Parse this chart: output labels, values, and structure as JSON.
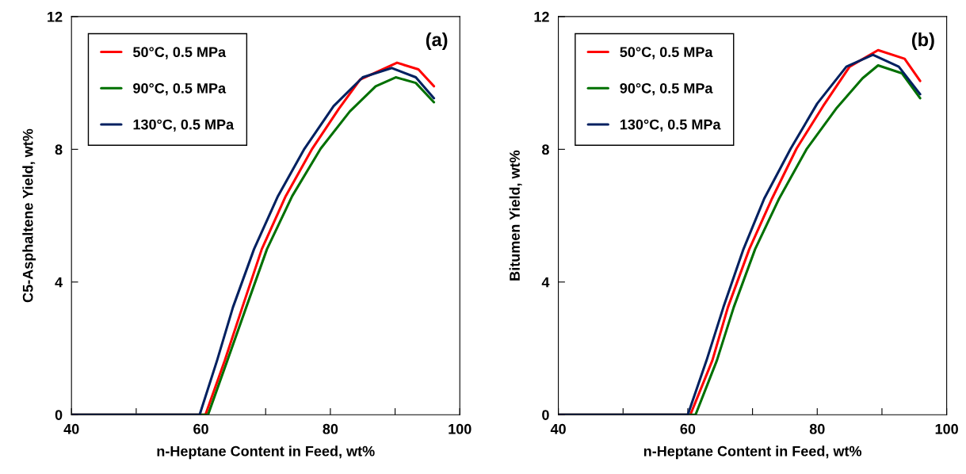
{
  "chart_data": [
    {
      "type": "line",
      "xlabel": "n-Heptane Content in Feed, wt%",
      "ylabel": "C5-Asphaltene Yield, wt%",
      "annotations": [
        "(a)"
      ],
      "xlim": [
        40,
        100
      ],
      "xticks": [
        40,
        {
          "value": 50,
          "label": null
        },
        60,
        {
          "value": 70,
          "label": null
        },
        80,
        {
          "value": 90,
          "label": null
        },
        100
      ],
      "ylim": [
        0,
        12
      ],
      "yticks": [
        0,
        4,
        8,
        12
      ],
      "grid": false,
      "legend": "top left",
      "marker": "none",
      "line_style": "solid",
      "series": [
        {
          "name": "50°C, 0.5 MPa",
          "color": "#ff0000",
          "x": [
            40,
            60.7,
            63.7,
            66.4,
            69.4,
            73.1,
            77.2,
            81.3,
            84.6,
            90.3,
            93.6,
            96.0
          ],
          "values": [
            0,
            0,
            1.64,
            3.24,
            4.99,
            6.59,
            8.02,
            9.22,
            10.1,
            10.61,
            10.41,
            9.9
          ]
        },
        {
          "name": "90°C, 0.5 MPa",
          "color": "#007000",
          "x": [
            40,
            61.1,
            64.1,
            67.0,
            70.2,
            74.1,
            78.5,
            83.0,
            87.0,
            90.1,
            93.2,
            96.0
          ],
          "values": [
            0,
            0,
            1.64,
            3.24,
            4.99,
            6.59,
            8.02,
            9.14,
            9.9,
            10.17,
            10.0,
            9.42
          ]
        },
        {
          "name": "130°C, 0.5 MPa",
          "color": "#002060",
          "x": [
            40,
            59.8,
            62.5,
            64.95,
            68.2,
            71.9,
            76.0,
            80.5,
            85.0,
            89.5,
            93.2,
            96.0
          ],
          "values": [
            0,
            0,
            1.64,
            3.24,
            4.99,
            6.59,
            8.02,
            9.3,
            10.17,
            10.45,
            10.17,
            9.54
          ]
        }
      ]
    },
    {
      "type": "line",
      "xlabel": "n-Heptane Content in Feed, wt%",
      "ylabel": "Bitumen Yield, wt%",
      "annotations": [
        "(b)"
      ],
      "xlim": [
        40,
        100
      ],
      "xticks": [
        40,
        {
          "value": 50,
          "label": null
        },
        60,
        {
          "value": 70,
          "label": null
        },
        80,
        {
          "value": 90,
          "label": null
        },
        100
      ],
      "ylim": [
        0,
        12
      ],
      "yticks": [
        0,
        4,
        8,
        12
      ],
      "grid": false,
      "legend": "top left",
      "marker": "none",
      "line_style": "solid",
      "series": [
        {
          "name": "50°C, 0.5 MPa",
          "color": "#ff0000",
          "x": [
            40,
            60.4,
            63.8,
            66.2,
            69.5,
            73.0,
            76.8,
            80.9,
            85.0,
            89.4,
            93.5,
            95.9
          ],
          "values": [
            0,
            0,
            1.64,
            3.24,
            4.99,
            6.51,
            8.02,
            9.3,
            10.49,
            10.99,
            10.73,
            10.06
          ]
        },
        {
          "name": "90°C, 0.5 MPa",
          "color": "#007000",
          "x": [
            40,
            61.2,
            64.5,
            67.1,
            70.4,
            74.1,
            78.4,
            82.9,
            87.0,
            89.4,
            93.1,
            95.9
          ],
          "values": [
            0,
            0,
            1.64,
            3.24,
            4.99,
            6.51,
            8.02,
            9.22,
            10.14,
            10.53,
            10.29,
            9.54
          ]
        },
        {
          "name": "130°C, 0.5 MPa",
          "color": "#002060",
          "x": [
            40,
            60.0,
            62.9,
            65.5,
            68.6,
            71.8,
            75.9,
            80.0,
            84.5,
            88.6,
            92.6,
            95.9
          ],
          "values": [
            0,
            0,
            1.64,
            3.24,
            4.99,
            6.51,
            8.02,
            9.38,
            10.49,
            10.85,
            10.49,
            9.66
          ]
        }
      ]
    }
  ]
}
